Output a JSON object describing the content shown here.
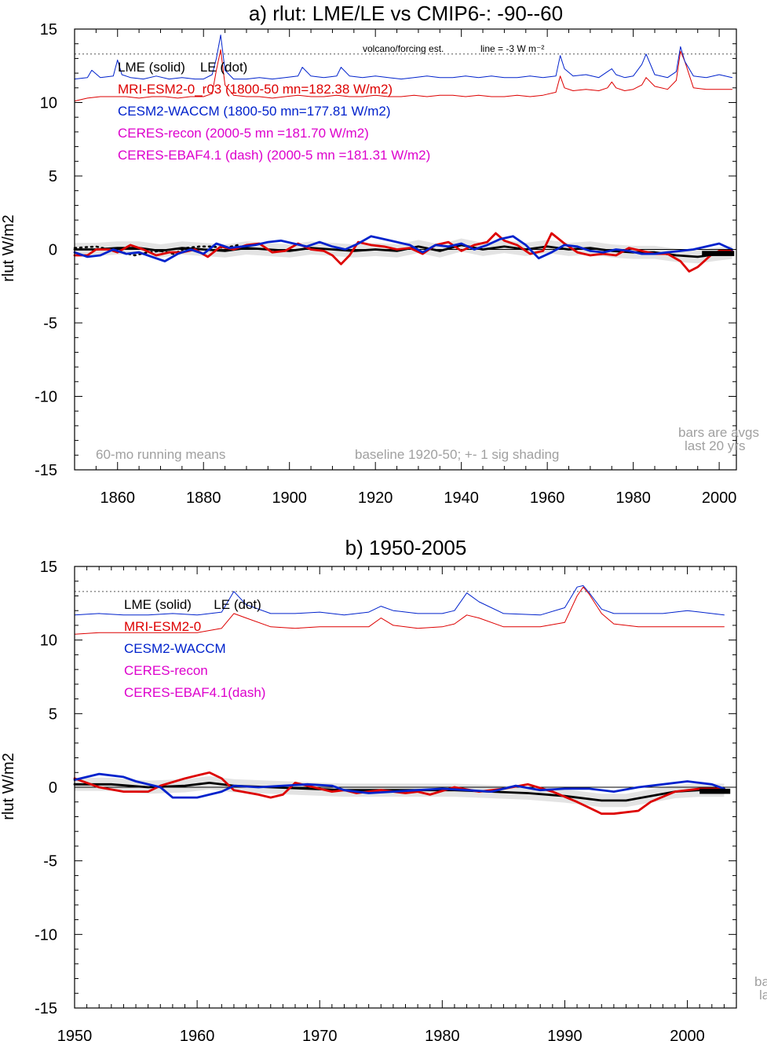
{
  "chart_data": [
    {
      "type": "line",
      "title": "a) rlut: LME/LE vs CMIP6-: -90--60",
      "ylabel": "rlut W/m2",
      "xlim": [
        1850,
        2004
      ],
      "ylim": [
        -15,
        15
      ],
      "x_ticks": [
        1860,
        1880,
        1900,
        1920,
        1940,
        1960,
        1980,
        2000
      ],
      "y_ticks": [
        15,
        10,
        5,
        0,
        -5,
        -10,
        -15
      ],
      "grid": false,
      "legend": [
        {
          "text": "LME (solid)    LE (dot)",
          "color": "#000000"
        },
        {
          "text": "MRI-ESM2-0_r03 (1800-50 mn=182.38 W/m2)",
          "color": "#dd0000"
        },
        {
          "text": "CESM2-WACCM (1800-50 mn=177.81 W/m2)",
          "color": "#0022cc"
        },
        {
          "text": "CERES-recon (2000-5 mn =181.70 W/m2)",
          "color": "#dd00cc"
        },
        {
          "text": "CERES-EBAF4.1 (dash) (2000-5 mn =181.31 W/m2)",
          "color": "#dd00cc"
        }
      ],
      "annotations": {
        "forcing_label": "volcano/forcing est.",
        "forcing_line_label": "line = -3 W m⁻²",
        "bottom_left": "60-mo running means",
        "bottom_mid": "baseline 1920-50; +- 1 sig shading",
        "bars_1": "bars are avgs",
        "bars_2": "last 20 yrs"
      },
      "reference_line_y": 13.3,
      "series": [
        {
          "name": "MRI-ESM2-0_r03",
          "color": "#dd0000",
          "role": "forcing",
          "x": [
            1850,
            1853,
            1856,
            1859,
            1862,
            1865,
            1868,
            1871,
            1874,
            1877,
            1880,
            1882,
            1883,
            1884,
            1885,
            1887,
            1890,
            1893,
            1896,
            1899,
            1902,
            1905,
            1908,
            1911,
            1914,
            1917,
            1920,
            1923,
            1926,
            1929,
            1932,
            1935,
            1938,
            1941,
            1944,
            1947,
            1950,
            1953,
            1956,
            1959,
            1962,
            1963,
            1964,
            1966,
            1969,
            1972,
            1974,
            1975,
            1976,
            1978,
            1980,
            1982,
            1983,
            1985,
            1988,
            1990,
            1991,
            1992,
            1994,
            1997,
            2000,
            2003
          ],
          "y": [
            10.1,
            10.3,
            10.4,
            10.4,
            10.4,
            10.3,
            10.4,
            10.4,
            10.3,
            10.4,
            10.4,
            10.6,
            12.2,
            13.6,
            11.2,
            10.5,
            10.4,
            10.4,
            10.3,
            10.4,
            10.5,
            10.4,
            10.4,
            10.5,
            10.4,
            10.4,
            10.5,
            10.4,
            10.4,
            10.5,
            10.4,
            10.5,
            10.5,
            10.4,
            10.5,
            10.4,
            10.4,
            10.5,
            10.4,
            10.5,
            10.7,
            11.8,
            11.0,
            10.8,
            10.9,
            10.8,
            11.0,
            11.4,
            11.0,
            10.8,
            10.9,
            11.2,
            11.7,
            11.1,
            10.9,
            11.5,
            13.5,
            12.8,
            11.0,
            10.9,
            10.9,
            10.9
          ]
        },
        {
          "name": "CESM2-WACCM",
          "color": "#0022cc",
          "role": "forcing",
          "x": [
            1850,
            1853,
            1854,
            1856,
            1859,
            1860,
            1861,
            1863,
            1866,
            1869,
            1872,
            1875,
            1878,
            1880,
            1882,
            1883,
            1884,
            1885,
            1887,
            1890,
            1893,
            1896,
            1899,
            1902,
            1903,
            1905,
            1908,
            1911,
            1912,
            1914,
            1917,
            1920,
            1923,
            1926,
            1929,
            1932,
            1935,
            1938,
            1941,
            1944,
            1947,
            1950,
            1953,
            1956,
            1959,
            1962,
            1963,
            1964,
            1966,
            1969,
            1972,
            1974,
            1975,
            1976,
            1978,
            1980,
            1982,
            1983,
            1985,
            1988,
            1990,
            1991,
            1992,
            1994,
            1997,
            2000,
            2003
          ],
          "y": [
            11.6,
            11.7,
            12.2,
            11.7,
            11.8,
            12.9,
            11.9,
            11.7,
            11.6,
            11.8,
            11.6,
            11.7,
            11.6,
            11.6,
            11.9,
            13.0,
            14.6,
            12.2,
            11.6,
            11.6,
            11.7,
            11.6,
            11.7,
            11.8,
            12.4,
            11.8,
            11.7,
            11.8,
            12.4,
            11.8,
            11.7,
            11.8,
            11.7,
            11.6,
            11.7,
            11.8,
            11.7,
            11.7,
            11.8,
            11.7,
            11.8,
            11.7,
            11.7,
            11.8,
            11.7,
            11.8,
            13.2,
            12.3,
            11.8,
            11.9,
            11.7,
            12.1,
            12.3,
            11.9,
            11.7,
            11.8,
            12.6,
            13.3,
            11.9,
            11.7,
            12.1,
            13.8,
            12.8,
            11.8,
            11.7,
            11.9,
            11.7
          ]
        },
        {
          "name": "LME",
          "color": "#000000",
          "role": "anomaly",
          "x": [
            1850,
            1855,
            1860,
            1865,
            1870,
            1875,
            1880,
            1885,
            1890,
            1895,
            1900,
            1905,
            1910,
            1915,
            1920,
            1925,
            1930,
            1935,
            1940,
            1945,
            1950,
            1955,
            1960,
            1965,
            1970,
            1975,
            1980,
            1985,
            1990,
            1995,
            2000,
            2003
          ],
          "y": [
            0.0,
            0.0,
            0.1,
            0.1,
            -0.1,
            0.1,
            0.0,
            -0.1,
            0.1,
            0.0,
            -0.1,
            0.1,
            0.0,
            -0.1,
            0.0,
            -0.1,
            0.2,
            -0.1,
            0.3,
            0.0,
            0.2,
            0.0,
            0.2,
            0.0,
            0.1,
            -0.1,
            -0.2,
            -0.2,
            -0.4,
            -0.5,
            -0.3,
            -0.2
          ]
        },
        {
          "name": "MRI-ESM2-0_r03",
          "color": "#dd0000",
          "role": "anomaly",
          "x": [
            1850,
            1853,
            1855,
            1858,
            1860,
            1863,
            1866,
            1869,
            1872,
            1875,
            1878,
            1881,
            1884,
            1887,
            1890,
            1893,
            1896,
            1899,
            1902,
            1905,
            1908,
            1910,
            1912,
            1914,
            1916,
            1919,
            1922,
            1925,
            1928,
            1931,
            1934,
            1937,
            1940,
            1943,
            1946,
            1948,
            1950,
            1953,
            1956,
            1959,
            1961,
            1964,
            1967,
            1970,
            1973,
            1976,
            1979,
            1982,
            1985,
            1988,
            1991,
            1993,
            1995,
            1998,
            2000,
            2003
          ],
          "y": [
            -0.4,
            -0.4,
            0.0,
            0.0,
            -0.2,
            0.3,
            0.0,
            -0.4,
            -0.2,
            -0.2,
            0.0,
            -0.5,
            0.2,
            0.0,
            0.3,
            0.4,
            -0.2,
            -0.1,
            0.4,
            0.0,
            -0.1,
            -0.4,
            -1.0,
            -0.4,
            0.5,
            0.3,
            0.2,
            0.0,
            0.1,
            -0.3,
            0.3,
            0.5,
            -0.1,
            0.3,
            0.5,
            1.1,
            0.6,
            0.3,
            -0.3,
            -0.1,
            1.1,
            0.4,
            -0.2,
            -0.4,
            -0.3,
            -0.4,
            0.1,
            -0.1,
            -0.3,
            -0.3,
            -0.8,
            -1.5,
            -1.2,
            -0.4,
            -0.1,
            -0.1
          ]
        },
        {
          "name": "CESM2-WACCM",
          "color": "#0022cc",
          "role": "anomaly",
          "x": [
            1850,
            1853,
            1856,
            1859,
            1862,
            1865,
            1868,
            1871,
            1874,
            1877,
            1880,
            1883,
            1886,
            1889,
            1892,
            1895,
            1898,
            1901,
            1904,
            1907,
            1910,
            1913,
            1916,
            1919,
            1922,
            1925,
            1928,
            1931,
            1934,
            1937,
            1940,
            1943,
            1946,
            1949,
            1952,
            1955,
            1958,
            1961,
            1964,
            1967,
            1970,
            1973,
            1976,
            1979,
            1982,
            1985,
            1988,
            1991,
            1994,
            1997,
            2000,
            2003
          ],
          "y": [
            -0.2,
            -0.5,
            -0.4,
            0.0,
            -0.3,
            -0.2,
            -0.5,
            -0.8,
            -0.3,
            0.0,
            -0.3,
            0.4,
            0.1,
            0.2,
            0.3,
            0.5,
            0.6,
            0.4,
            0.2,
            0.5,
            0.2,
            0.0,
            0.4,
            0.9,
            0.7,
            0.5,
            0.3,
            -0.2,
            0.3,
            0.2,
            0.4,
            0.0,
            0.3,
            0.7,
            0.9,
            0.3,
            -0.6,
            -0.2,
            0.3,
            0.2,
            -0.1,
            -0.2,
            0.0,
            -0.1,
            -0.3,
            -0.3,
            -0.2,
            -0.1,
            0.0,
            0.2,
            0.4,
            0.0
          ]
        },
        {
          "name": "LE",
          "color": "#000000",
          "role": "dotted",
          "x": [
            1850,
            1855,
            1858,
            1861,
            1864,
            1867,
            1870,
            1873,
            1876,
            1879,
            1882,
            1885,
            1888
          ],
          "y": [
            0.1,
            0.2,
            0.0,
            -0.2,
            -0.4,
            -0.2,
            -0.1,
            -0.3,
            0.1,
            0.2,
            0.2,
            0.1,
            0.3
          ]
        }
      ]
    },
    {
      "type": "line",
      "title": "b) 1950-2005",
      "ylabel": "rlut W/m2",
      "xlim": [
        1950,
        2004
      ],
      "ylim": [
        -15,
        15
      ],
      "x_ticks": [
        1950,
        1960,
        1970,
        1980,
        1990,
        2000
      ],
      "y_ticks": [
        15,
        10,
        5,
        0,
        -5,
        -10,
        -15
      ],
      "grid": false,
      "legend": [
        {
          "text": "LME (solid)      LE (dot)",
          "color": "#000000"
        },
        {
          "text": "MRI-ESM2-0",
          "color": "#dd0000"
        },
        {
          "text": "CESM2-WACCM",
          "color": "#0022cc"
        },
        {
          "text": "CERES-recon",
          "color": "#dd00cc"
        },
        {
          "text": "CERES-EBAF4.1(dash)",
          "color": "#dd00cc"
        }
      ],
      "annotations": {
        "bars_1": "ba",
        "bars_2": "la"
      },
      "reference_line_y": 13.3,
      "series": [
        {
          "name": "MRI-ESM2-0",
          "color": "#dd0000",
          "role": "forcing",
          "x": [
            1950,
            1952,
            1954,
            1956,
            1958,
            1960,
            1962,
            1963,
            1964,
            1966,
            1968,
            1970,
            1972,
            1974,
            1975,
            1976,
            1978,
            1980,
            1981,
            1982,
            1983,
            1985,
            1988,
            1990,
            1991,
            1991.5,
            1992,
            1993,
            1994,
            1996,
            1998,
            2000,
            2003
          ],
          "y": [
            10.4,
            10.5,
            10.5,
            10.5,
            10.5,
            10.5,
            10.8,
            11.8,
            11.5,
            10.9,
            10.8,
            10.9,
            10.9,
            10.9,
            11.5,
            11.0,
            10.8,
            10.9,
            11.1,
            11.7,
            11.5,
            10.9,
            10.9,
            11.2,
            13.0,
            13.6,
            13.1,
            11.8,
            11.1,
            10.9,
            10.9,
            10.9,
            10.9
          ]
        },
        {
          "name": "CESM2-WACCM",
          "color": "#0022cc",
          "role": "forcing",
          "x": [
            1950,
            1952,
            1954,
            1956,
            1958,
            1960,
            1962,
            1963,
            1964,
            1966,
            1968,
            1970,
            1972,
            1974,
            1975,
            1976,
            1978,
            1980,
            1981,
            1982,
            1983,
            1985,
            1988,
            1990,
            1991,
            1991.5,
            1992,
            1993,
            1994,
            1996,
            1998,
            2000,
            2003
          ],
          "y": [
            11.7,
            11.8,
            11.7,
            11.7,
            11.8,
            11.7,
            11.9,
            13.3,
            12.4,
            11.8,
            11.8,
            11.9,
            11.7,
            11.9,
            12.3,
            12.0,
            11.8,
            11.8,
            12.0,
            13.2,
            12.6,
            11.8,
            11.7,
            12.2,
            13.6,
            13.7,
            13.2,
            12.1,
            11.8,
            11.8,
            11.8,
            12.0,
            11.7
          ]
        },
        {
          "name": "LME",
          "color": "#000000",
          "role": "anomaly",
          "x": [
            1950,
            1953,
            1956,
            1959,
            1961,
            1963,
            1966,
            1969,
            1972,
            1975,
            1978,
            1981,
            1984,
            1987,
            1990,
            1993,
            1995,
            1997,
            1999,
            2001,
            2003
          ],
          "y": [
            0.2,
            0.2,
            0.0,
            0.1,
            0.3,
            0.1,
            0.0,
            -0.1,
            -0.2,
            -0.2,
            -0.2,
            -0.2,
            -0.3,
            -0.4,
            -0.6,
            -0.9,
            -0.9,
            -0.6,
            -0.3,
            -0.2,
            -0.2
          ]
        },
        {
          "name": "MRI-ESM2-0",
          "color": "#dd0000",
          "role": "anomaly",
          "x": [
            1950,
            1952,
            1954,
            1956,
            1957,
            1959,
            1961,
            1962,
            1963,
            1965,
            1966,
            1967,
            1968,
            1969,
            1971,
            1972,
            1973,
            1975,
            1977,
            1978,
            1979,
            1981,
            1983,
            1985,
            1987,
            1989,
            1991,
            1993,
            1994,
            1996,
            1997,
            1999,
            2001,
            2003
          ],
          "y": [
            0.6,
            0.0,
            -0.3,
            -0.3,
            0.1,
            0.6,
            1.0,
            0.6,
            -0.2,
            -0.5,
            -0.7,
            -0.5,
            0.3,
            0.1,
            -0.3,
            -0.2,
            -0.4,
            -0.2,
            -0.4,
            -0.3,
            -0.5,
            0.0,
            -0.3,
            -0.1,
            0.2,
            -0.3,
            -1.0,
            -1.8,
            -1.8,
            -1.6,
            -1.0,
            -0.3,
            -0.1,
            -0.1
          ]
        },
        {
          "name": "CESM2-WACCM",
          "color": "#0022cc",
          "role": "anomaly",
          "x": [
            1950,
            1952,
            1954,
            1955,
            1957,
            1958,
            1960,
            1962,
            1963,
            1965,
            1967,
            1969,
            1971,
            1972,
            1974,
            1976,
            1978,
            1980,
            1982,
            1984,
            1986,
            1988,
            1990,
            1992,
            1994,
            1996,
            1998,
            2000,
            2002,
            2003
          ],
          "y": [
            0.5,
            0.9,
            0.7,
            0.4,
            0.0,
            -0.7,
            -0.7,
            -0.3,
            0.1,
            0.0,
            0.1,
            0.2,
            0.1,
            -0.2,
            -0.4,
            -0.3,
            -0.2,
            -0.1,
            -0.2,
            -0.3,
            0.1,
            -0.2,
            -0.1,
            -0.1,
            -0.3,
            0.0,
            0.2,
            0.4,
            0.2,
            -0.1
          ]
        }
      ]
    }
  ]
}
